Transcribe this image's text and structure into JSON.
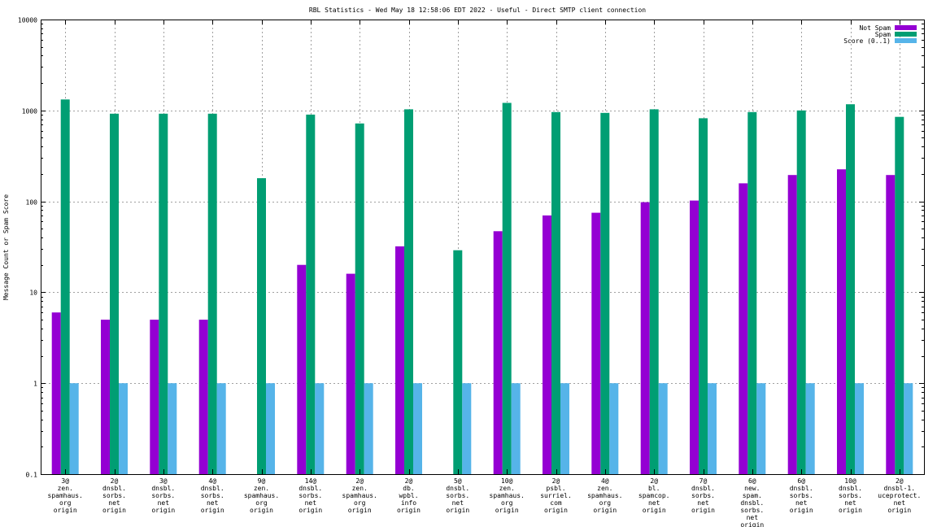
{
  "chart_data": {
    "type": "bar",
    "title": "RBL Statistics - Wed May 18 12:58:06 EDT 2022 - Useful - Direct SMTP client connection",
    "xlabel": "",
    "ylabel": "Message Count or Spam Score",
    "yscale": "log",
    "ylim": [
      0.1,
      10000
    ],
    "yticks": [
      {
        "value": 0.1,
        "label": "0.1"
      },
      {
        "value": 1,
        "label": "1"
      },
      {
        "value": 10,
        "label": "10"
      },
      {
        "value": 100,
        "label": "100"
      },
      {
        "value": 1000,
        "label": "1000"
      },
      {
        "value": 10000,
        "label": "10000"
      }
    ],
    "grid": true,
    "legend_position": "top-right",
    "categories": [
      [
        "3@",
        "zen.",
        "spamhaus.",
        "org",
        "origin"
      ],
      [
        "2@",
        "dnsbl.",
        "sorbs.",
        "net",
        "origin"
      ],
      [
        "3@",
        "dnsbl.",
        "sorbs.",
        "net",
        "origin"
      ],
      [
        "4@",
        "dnsbl.",
        "sorbs.",
        "net",
        "origin"
      ],
      [
        "9@",
        "zen.",
        "spamhaus.",
        "org",
        "origin"
      ],
      [
        "14@",
        "dnsbl.",
        "sorbs.",
        "net",
        "origin"
      ],
      [
        "2@",
        "zen.",
        "spamhaus.",
        "org",
        "origin"
      ],
      [
        "2@",
        "db.",
        "wpbl.",
        "info",
        "origin"
      ],
      [
        "5@",
        "dnsbl.",
        "sorbs.",
        "net",
        "origin"
      ],
      [
        "10@",
        "zen.",
        "spamhaus.",
        "org",
        "origin"
      ],
      [
        "2@",
        "psbl.",
        "surriel.",
        "com",
        "origin"
      ],
      [
        "4@",
        "zen.",
        "spamhaus.",
        "org",
        "origin"
      ],
      [
        "2@",
        "bl.",
        "spamcop.",
        "net",
        "origin"
      ],
      [
        "7@",
        "dnsbl.",
        "sorbs.",
        "net",
        "origin"
      ],
      [
        "6@",
        "new.",
        "spam.",
        "dnsbl.",
        "sorbs.",
        "net",
        "origin"
      ],
      [
        "6@",
        "dnsbl.",
        "sorbs.",
        "net",
        "origin"
      ],
      [
        "10@",
        "dnsbl.",
        "sorbs.",
        "net",
        "origin"
      ],
      [
        "2@",
        "dnsbl-1.",
        "uceprotect.",
        "net",
        "origin"
      ]
    ],
    "series": [
      {
        "name": "Not Spam",
        "color": "#9400d3",
        "values": [
          6,
          5,
          5,
          5,
          null,
          20,
          16,
          32,
          null,
          47,
          70,
          75,
          98,
          102,
          158,
          195,
          225,
          195
        ]
      },
      {
        "name": "Spam",
        "color": "#009e73",
        "values": [
          1320,
          920,
          920,
          920,
          180,
          900,
          720,
          1030,
          29,
          1210,
          960,
          940,
          1030,
          820,
          960,
          1000,
          1170,
          850
        ]
      },
      {
        "name": "Score (0..1)",
        "color": "#56b4e9",
        "values": [
          1,
          1,
          1,
          1,
          1,
          1,
          1,
          1,
          1,
          1,
          1,
          1,
          1,
          1,
          1,
          1,
          1,
          1
        ]
      }
    ]
  }
}
